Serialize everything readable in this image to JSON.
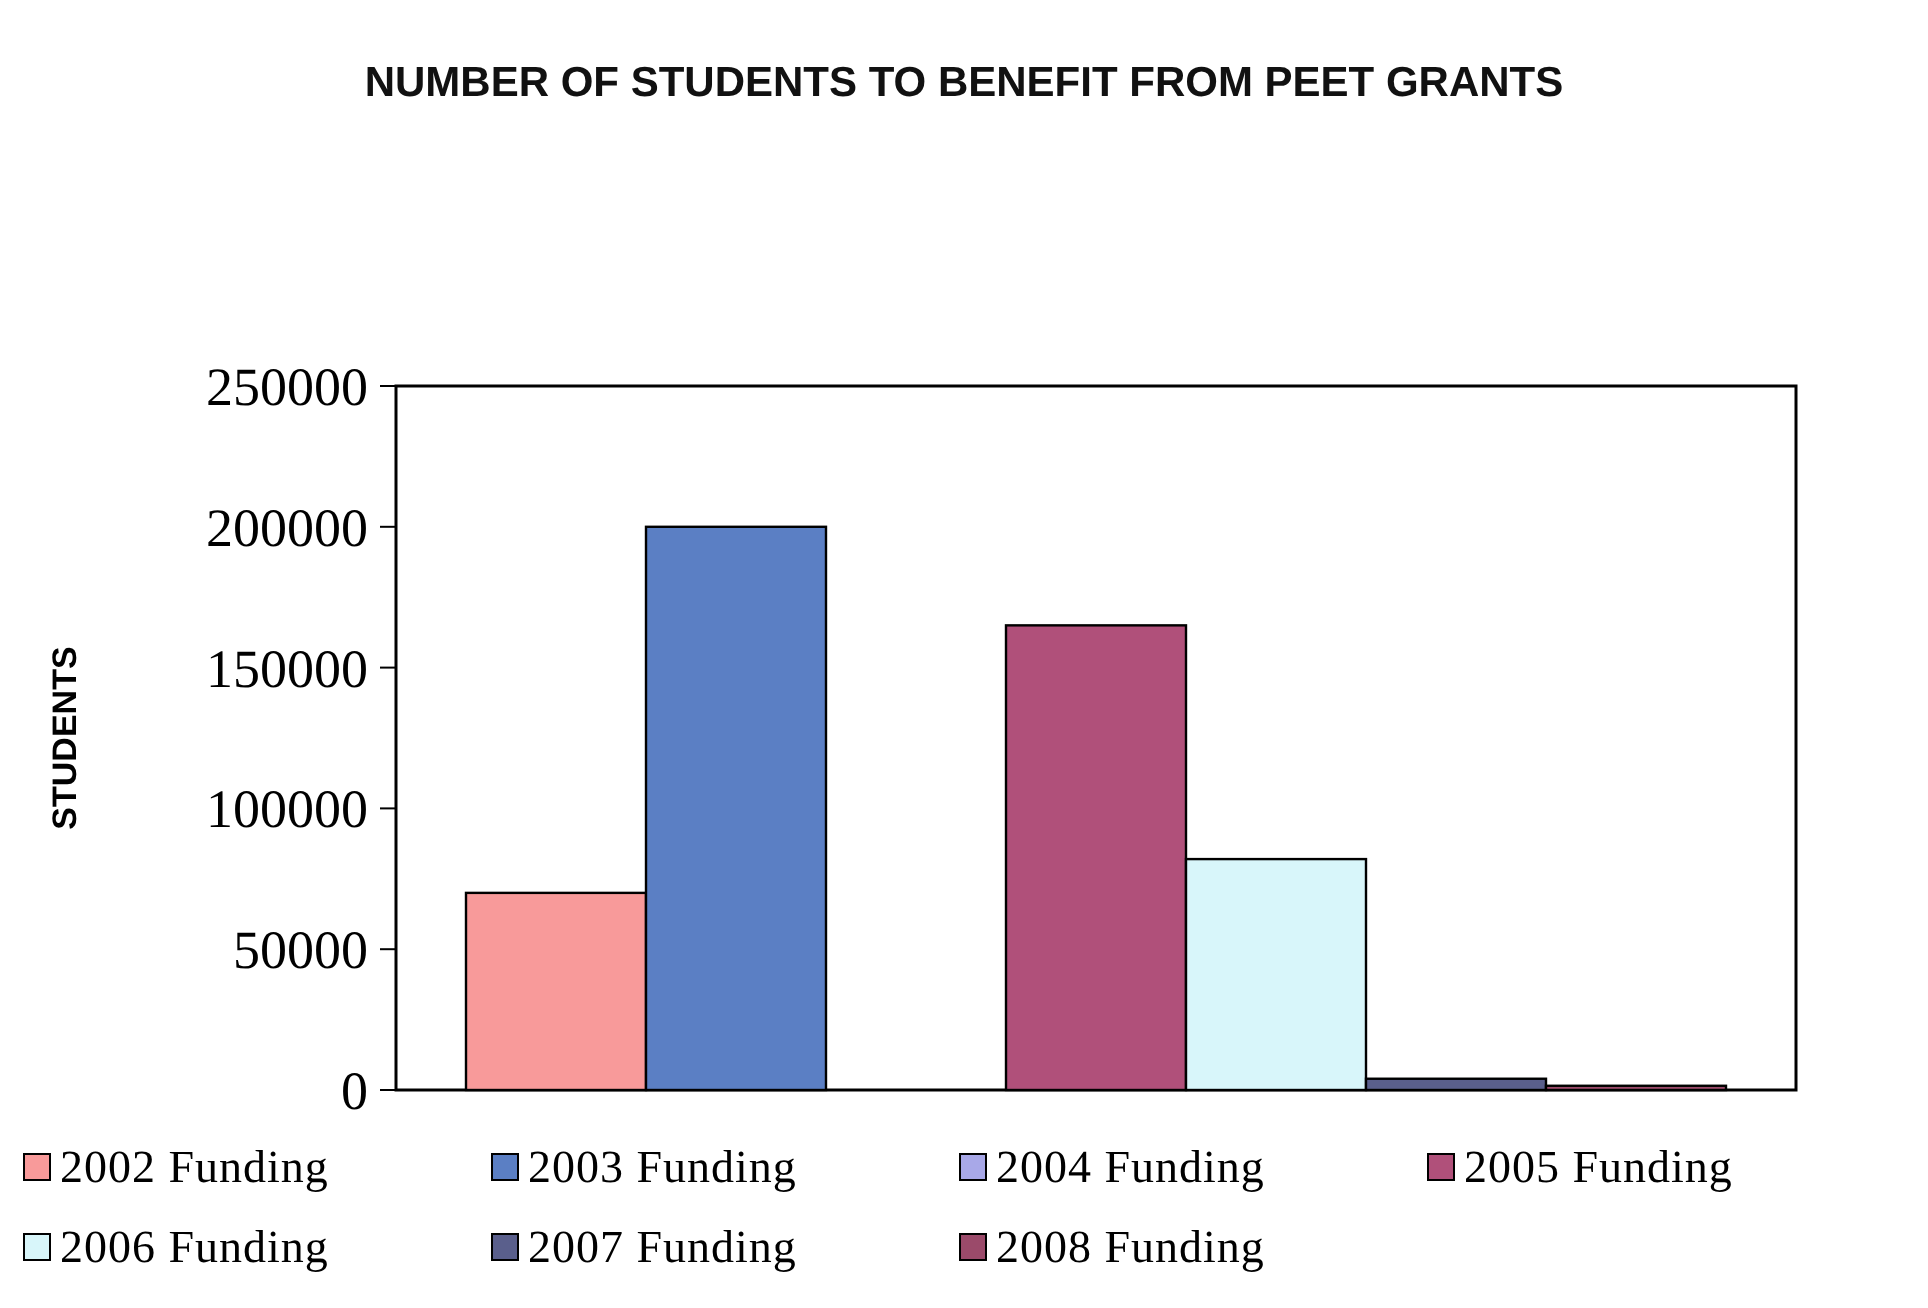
{
  "chart_data": {
    "type": "bar",
    "title": "NUMBER OF STUDENTS TO BENEFIT FROM PEET GRANTS",
    "ylabel": "STUDENTS",
    "categories": [
      null
    ],
    "series": [
      {
        "name": "2002 Funding",
        "color": "#f89a9a",
        "values": [
          70000
        ]
      },
      {
        "name": "2003 Funding",
        "color": "#5b7fc4",
        "values": [
          200000
        ]
      },
      {
        "name": "2004 Funding",
        "color": "#a8a8e8",
        "values": [
          0
        ]
      },
      {
        "name": "2005 Funding",
        "color": "#b0507a",
        "values": [
          165000
        ]
      },
      {
        "name": "2006 Funding",
        "color": "#d8f6fa",
        "values": [
          82000
        ]
      },
      {
        "name": "2007 Funding",
        "color": "#5a5f8c",
        "values": [
          4000
        ]
      },
      {
        "name": "2008 Funding",
        "color": "#9b4a6a",
        "values": [
          1500
        ]
      }
    ],
    "ylim": [
      0,
      250000
    ],
    "yticks": [
      0,
      50000,
      100000,
      150000,
      200000,
      250000
    ],
    "legend": "bottom"
  }
}
